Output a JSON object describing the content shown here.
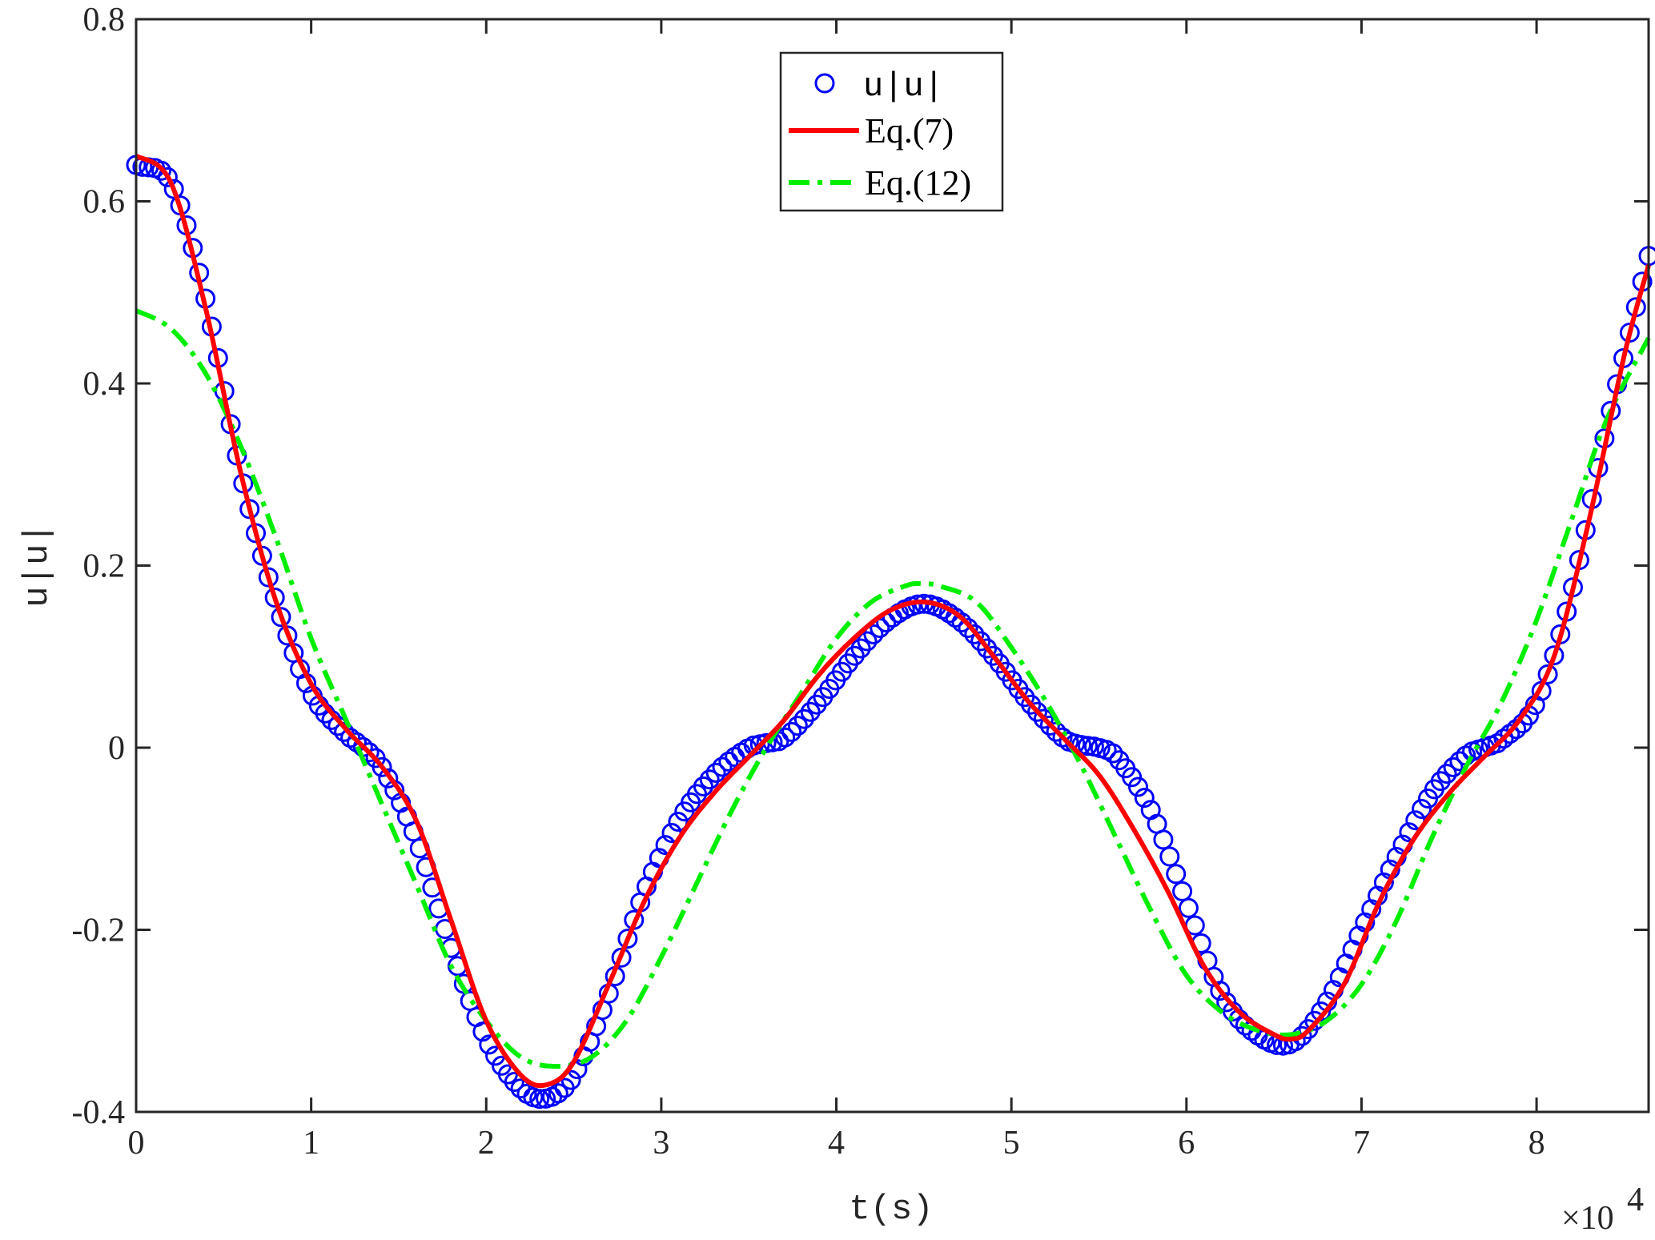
{
  "chart_data": {
    "type": "line",
    "xlabel": "t(s)",
    "ylabel": "u|u|",
    "x_exponent_label": "×10",
    "x_exponent_power": "4",
    "xlim": [
      0,
      86400
    ],
    "ylim": [
      -0.4,
      0.8
    ],
    "x_ticks": [
      0,
      10000,
      20000,
      30000,
      40000,
      50000,
      60000,
      70000,
      80000
    ],
    "x_tick_labels": [
      "0",
      "1",
      "2",
      "3",
      "4",
      "5",
      "6",
      "7",
      "8"
    ],
    "y_ticks": [
      -0.4,
      -0.2,
      0,
      0.2,
      0.4,
      0.6,
      0.8
    ],
    "y_tick_labels": [
      "-0.4",
      "-0.2",
      "0",
      "0.2",
      "0.4",
      "0.6",
      "0.8"
    ],
    "grid": false,
    "legend_position": "top-center",
    "colors": {
      "u_abs_u": "#0000ff",
      "eq7": "#ff0000",
      "eq12": "#00ee00"
    },
    "series": [
      {
        "name": "u|u|",
        "style": "markers-circle",
        "x": [
          0,
          2000,
          4000,
          6000,
          8000,
          10000,
          12000,
          13000,
          14000,
          16000,
          18000,
          20000,
          22000,
          23500,
          25000,
          27000,
          29000,
          31000,
          33000,
          35000,
          36000,
          37000,
          39000,
          41000,
          43000,
          45000,
          47000,
          49000,
          51000,
          53000,
          54000,
          55000,
          56000,
          58000,
          60000,
          62000,
          64000,
          66000,
          68000,
          70000,
          72000,
          74000,
          76000,
          77000,
          78000,
          80000,
          82000,
          84000,
          86400
        ],
        "y": [
          0.64,
          0.62,
          0.49,
          0.3,
          0.16,
          0.06,
          0.015,
          0.0,
          -0.02,
          -0.1,
          -0.22,
          -0.32,
          -0.375,
          -0.385,
          -0.36,
          -0.27,
          -0.16,
          -0.08,
          -0.03,
          0.0,
          0.005,
          0.01,
          0.05,
          0.1,
          0.14,
          0.158,
          0.14,
          0.1,
          0.05,
          0.01,
          0.003,
          0.0,
          -0.01,
          -0.07,
          -0.17,
          -0.27,
          -0.315,
          -0.325,
          -0.28,
          -0.2,
          -0.12,
          -0.05,
          -0.008,
          0.0,
          0.008,
          0.05,
          0.17,
          0.35,
          0.54
        ]
      },
      {
        "name": "Eq.(7)",
        "style": "solid",
        "x": [
          0,
          2000,
          4000,
          6000,
          8000,
          10000,
          12000,
          14000,
          16000,
          18000,
          20000,
          22000,
          23500,
          25000,
          27000,
          29000,
          31000,
          33000,
          35000,
          37000,
          39000,
          41000,
          43000,
          45000,
          47000,
          49000,
          51000,
          53000,
          55000,
          57000,
          59000,
          61000,
          63000,
          65000,
          66000,
          67000,
          69000,
          71000,
          73000,
          75000,
          77000,
          79000,
          81000,
          83000,
          85000,
          86400
        ],
        "y": [
          0.65,
          0.62,
          0.48,
          0.3,
          0.16,
          0.07,
          0.02,
          -0.02,
          -0.08,
          -0.19,
          -0.3,
          -0.36,
          -0.37,
          -0.345,
          -0.26,
          -0.17,
          -0.1,
          -0.05,
          -0.01,
          0.03,
          0.08,
          0.12,
          0.15,
          0.16,
          0.145,
          0.1,
          0.05,
          0.01,
          -0.03,
          -0.09,
          -0.16,
          -0.24,
          -0.29,
          -0.315,
          -0.32,
          -0.31,
          -0.26,
          -0.17,
          -0.1,
          -0.05,
          -0.01,
          0.03,
          0.1,
          0.25,
          0.43,
          0.53
        ]
      },
      {
        "name": "Eq.(12)",
        "style": "dash-dot",
        "x": [
          0,
          2000,
          4000,
          6000,
          8000,
          10000,
          12000,
          14000,
          16000,
          18000,
          20000,
          22000,
          24000,
          26000,
          28000,
          30000,
          32000,
          34000,
          36000,
          38000,
          40000,
          42000,
          44000,
          45000,
          46000,
          48000,
          50000,
          52000,
          54000,
          56000,
          58000,
          60000,
          62000,
          64000,
          66000,
          68000,
          70000,
          72000,
          74000,
          76000,
          78000,
          80000,
          82000,
          84000,
          86400
        ],
        "y": [
          0.48,
          0.46,
          0.41,
          0.33,
          0.23,
          0.12,
          0.03,
          -0.06,
          -0.15,
          -0.24,
          -0.3,
          -0.34,
          -0.35,
          -0.34,
          -0.3,
          -0.23,
          -0.15,
          -0.07,
          0.0,
          0.06,
          0.12,
          0.16,
          0.178,
          0.18,
          0.177,
          0.16,
          0.11,
          0.05,
          -0.02,
          -0.1,
          -0.18,
          -0.25,
          -0.29,
          -0.31,
          -0.315,
          -0.3,
          -0.26,
          -0.19,
          -0.1,
          -0.02,
          0.05,
          0.14,
          0.25,
          0.36,
          0.45
        ]
      }
    ]
  }
}
